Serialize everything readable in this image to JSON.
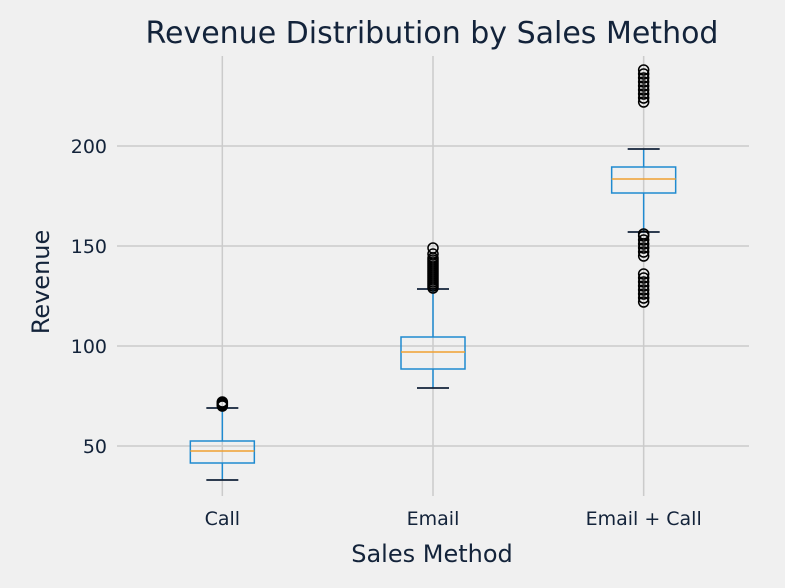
{
  "chart_data": {
    "type": "boxplot",
    "title": "Revenue Distribution by Sales Method",
    "xlabel": "Sales Method",
    "ylabel": "Revenue",
    "categories": [
      "Call",
      "Email",
      "Email + Call"
    ],
    "ylim": [
      25,
      245
    ],
    "yticks": [
      50,
      100,
      150,
      200
    ],
    "grid": true,
    "boxes": [
      {
        "category": "Call",
        "whisker_low": 33,
        "q1": 41.5,
        "median": 47.5,
        "q3": 52.5,
        "whisker_high": 69,
        "outliers": [
          70,
          70.5,
          71,
          71.5,
          72
        ]
      },
      {
        "category": "Email",
        "whisker_low": 79,
        "q1": 88.5,
        "median": 97,
        "q3": 104.5,
        "whisker_high": 128.5,
        "outliers": [
          129,
          130,
          131,
          132,
          133,
          134,
          135,
          136,
          137,
          138,
          139,
          140,
          141,
          142,
          143,
          144,
          146,
          149
        ]
      },
      {
        "category": "Email + Call",
        "whisker_low": 157,
        "q1": 176.5,
        "median": 183.5,
        "q3": 189.5,
        "whisker_high": 198.5,
        "outliers": [
          122,
          124,
          126,
          128,
          130,
          132,
          134,
          136,
          145,
          147,
          149,
          151,
          153,
          155,
          156,
          222,
          224,
          226,
          228,
          230,
          232,
          234,
          236,
          238
        ]
      }
    ],
    "colors": {
      "box": "#1f8ad0",
      "median": "#f0a030",
      "whisker_cap": "#13233a",
      "outlier": "#000000",
      "grid": "#cbcbcb",
      "background": "#f0f0f0"
    }
  }
}
